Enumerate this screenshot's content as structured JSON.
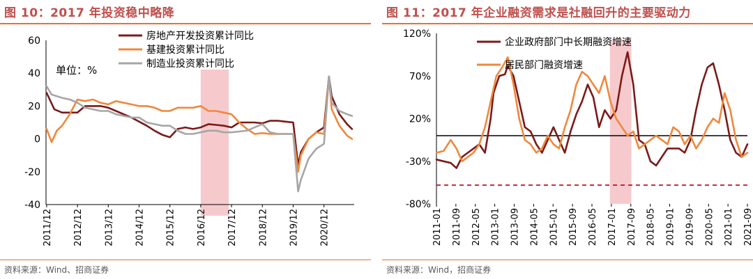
{
  "left": {
    "title": "图 10：2017 年投资稳中略降",
    "source": "资料来源：Wind、招商证券",
    "chart_data": {
      "type": "line",
      "annotation": "单位：%",
      "ylim": [
        -40,
        60
      ],
      "y_ticks": [
        "60",
        "40",
        "20",
        "0",
        "-20",
        "-40"
      ],
      "x_ticks": [
        "2011/12",
        "2012/12",
        "2013/12",
        "2014/12",
        "2015/12",
        "2016/12",
        "2017/12",
        "2018/12",
        "2019/12",
        "2020/12"
      ],
      "x_range": [
        2011.9,
        2021.9
      ],
      "shaded_region": [
        2016.92,
        2017.83
      ],
      "legend": "top-center",
      "series": [
        {
          "name": "房地产开发投资累计同比",
          "color": "#7b1a1a",
          "x": [
            2011.92,
            2012.17,
            2012.42,
            2012.67,
            2012.92,
            2013.17,
            2013.42,
            2013.67,
            2013.92,
            2014.17,
            2014.42,
            2014.67,
            2014.92,
            2015.17,
            2015.42,
            2015.67,
            2015.92,
            2016.17,
            2016.42,
            2016.67,
            2016.92,
            2017.17,
            2017.42,
            2017.67,
            2017.92,
            2018.17,
            2018.42,
            2018.67,
            2018.92,
            2019.17,
            2019.42,
            2019.67,
            2019.92,
            2020.08,
            2020.17,
            2020.42,
            2020.67,
            2020.92,
            2021.08,
            2021.17,
            2021.42,
            2021.67,
            2021.83
          ],
          "y": [
            28,
            18,
            16,
            16,
            16,
            20,
            20,
            20,
            19,
            17,
            15,
            13,
            10.5,
            8,
            5,
            2.5,
            1,
            6,
            7,
            6,
            7,
            9,
            8.5,
            8,
            7,
            10,
            10,
            10,
            9.5,
            11,
            11,
            10.5,
            10,
            -16,
            -8,
            0,
            4,
            7,
            38,
            26,
            15,
            9,
            6
          ]
        },
        {
          "name": "基建投资累计同比",
          "color": "#f0883c",
          "x": [
            2011.92,
            2012.08,
            2012.25,
            2012.42,
            2012.67,
            2012.92,
            2013.17,
            2013.42,
            2013.67,
            2013.92,
            2014.17,
            2014.42,
            2014.67,
            2014.92,
            2015.17,
            2015.42,
            2015.67,
            2015.92,
            2016.17,
            2016.42,
            2016.67,
            2016.92,
            2017.17,
            2017.42,
            2017.67,
            2017.92,
            2018.17,
            2018.42,
            2018.67,
            2018.92,
            2019.17,
            2019.42,
            2019.67,
            2019.92,
            2020.08,
            2020.17,
            2020.42,
            2020.67,
            2020.92,
            2021.08,
            2021.17,
            2021.42,
            2021.67,
            2021.83
          ],
          "y": [
            6,
            -2,
            5,
            8,
            15,
            24,
            23,
            24,
            22,
            21,
            23,
            22,
            21,
            20,
            20,
            19,
            17,
            17,
            19,
            19,
            19,
            20,
            17,
            17,
            16,
            15,
            10,
            6,
            3,
            3.5,
            3,
            3,
            3,
            3,
            -20,
            -10,
            0,
            4,
            3,
            38,
            18,
            8,
            2,
            0
          ]
        },
        {
          "name": "制造业投资累计同比",
          "color": "#a6a6a6",
          "x": [
            2011.92,
            2012.08,
            2012.42,
            2012.67,
            2012.92,
            2013.17,
            2013.42,
            2013.67,
            2013.92,
            2014.17,
            2014.42,
            2014.67,
            2014.92,
            2015.17,
            2015.42,
            2015.67,
            2015.92,
            2016.17,
            2016.42,
            2016.67,
            2016.92,
            2017.17,
            2017.42,
            2017.67,
            2017.92,
            2018.17,
            2018.42,
            2018.67,
            2018.92,
            2019.17,
            2019.42,
            2019.67,
            2019.92,
            2020.08,
            2020.17,
            2020.42,
            2020.67,
            2020.92,
            2021.08,
            2021.17,
            2021.42,
            2021.67,
            2021.83
          ],
          "y": [
            32,
            27,
            25,
            24,
            22,
            19,
            18,
            17,
            17,
            15,
            14,
            13,
            13,
            10,
            9,
            8,
            8,
            5,
            3,
            3,
            4,
            5,
            5,
            4,
            4,
            4.5,
            5,
            7,
            9,
            4,
            3,
            3,
            3,
            -32,
            -25,
            -12,
            -6,
            -3,
            38,
            22,
            17,
            15,
            14
          ]
        }
      ]
    }
  },
  "right": {
    "title": "图 11：2017 年企业融资需求是社融回升的主要驱动力",
    "source": "资料来源：Wind，招商证券",
    "chart_data": {
      "type": "line",
      "ylim": [
        -80,
        120
      ],
      "y_ticks": [
        "120%",
        "70%",
        "20%",
        "-30%",
        "-80%"
      ],
      "x_ticks": [
        "2011-01",
        "2011-09",
        "2012-05",
        "2013-01",
        "2013-09",
        "2014-05",
        "2015-01",
        "2015-09",
        "2016-05",
        "2017-01",
        "2017-09",
        "2018-05",
        "2019-01",
        "2019-09",
        "2020-05",
        "2021-01",
        "2021-09"
      ],
      "x_range": [
        2011.0,
        2021.9
      ],
      "zero_line": 0,
      "reference_line": -58,
      "shaded_region": [
        2017.08,
        2017.83
      ],
      "legend": "top-left",
      "series": [
        {
          "name": "企业政府部门中长期融资增速",
          "color": "#7b1a1a",
          "x": [
            2011.0,
            2011.25,
            2011.5,
            2011.7,
            2011.9,
            2012.1,
            2012.3,
            2012.5,
            2012.7,
            2012.9,
            2013.0,
            2013.2,
            2013.4,
            2013.5,
            2013.7,
            2013.9,
            2014.1,
            2014.3,
            2014.5,
            2014.7,
            2014.9,
            2015.1,
            2015.3,
            2015.5,
            2015.7,
            2015.9,
            2016.1,
            2016.3,
            2016.5,
            2016.7,
            2016.9,
            2017.1,
            2017.3,
            2017.5,
            2017.7,
            2017.9,
            2018.1,
            2018.3,
            2018.5,
            2018.7,
            2018.9,
            2019.1,
            2019.3,
            2019.5,
            2019.7,
            2019.9,
            2020.1,
            2020.3,
            2020.5,
            2020.7,
            2020.9,
            2021.1,
            2021.3,
            2021.5,
            2021.7,
            2021.9
          ],
          "y": [
            -28,
            -30,
            -32,
            -38,
            -25,
            -20,
            -15,
            -10,
            -20,
            20,
            50,
            70,
            72,
            82,
            70,
            40,
            10,
            5,
            -10,
            -20,
            -5,
            10,
            -5,
            -20,
            5,
            25,
            40,
            60,
            45,
            10,
            30,
            20,
            30,
            70,
            98,
            60,
            -5,
            -10,
            -30,
            -35,
            -25,
            -15,
            -15,
            -15,
            -20,
            -5,
            30,
            60,
            80,
            85,
            60,
            30,
            -5,
            -20,
            -25,
            -10
          ]
        },
        {
          "name": "居民部门融资增速",
          "color": "#f0883c",
          "x": [
            2011.0,
            2011.25,
            2011.5,
            2011.7,
            2011.9,
            2012.1,
            2012.3,
            2012.5,
            2012.7,
            2012.9,
            2013.1,
            2013.3,
            2013.5,
            2013.7,
            2013.9,
            2014.1,
            2014.3,
            2014.5,
            2014.7,
            2014.9,
            2015.1,
            2015.3,
            2015.5,
            2015.7,
            2015.9,
            2016.1,
            2016.3,
            2016.5,
            2016.7,
            2016.9,
            2017.1,
            2017.3,
            2017.5,
            2017.7,
            2017.9,
            2018.1,
            2018.3,
            2018.5,
            2018.7,
            2018.9,
            2019.1,
            2019.3,
            2019.5,
            2019.7,
            2019.9,
            2020.1,
            2020.3,
            2020.5,
            2020.7,
            2020.9,
            2021.1,
            2021.3,
            2021.5,
            2021.7,
            2021.9
          ],
          "y": [
            -20,
            -18,
            -5,
            -15,
            -30,
            -25,
            -20,
            -10,
            10,
            40,
            70,
            80,
            92,
            60,
            20,
            -5,
            -10,
            -20,
            -15,
            0,
            -10,
            -15,
            10,
            30,
            60,
            75,
            70,
            60,
            50,
            70,
            40,
            20,
            10,
            0,
            5,
            -15,
            -10,
            -5,
            0,
            -5,
            -10,
            10,
            5,
            -10,
            0,
            -15,
            -5,
            10,
            20,
            15,
            50,
            30,
            -5,
            -25,
            -20
          ]
        }
      ]
    }
  }
}
